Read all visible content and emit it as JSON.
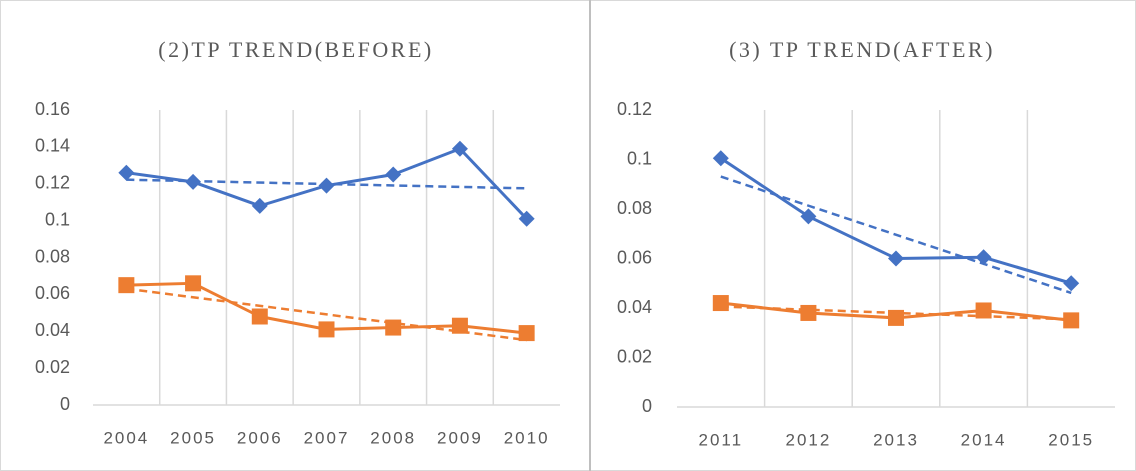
{
  "chart_data": [
    {
      "type": "line",
      "title": "(2)TP TREND(BEFORE)",
      "categories": [
        "2004",
        "2005",
        "2006",
        "2007",
        "2008",
        "2009",
        "2010"
      ],
      "series": [
        {
          "color": "#4472c4",
          "marker": "diamond",
          "values": [
            0.126,
            0.121,
            0.108,
            0.119,
            0.125,
            0.139,
            0.101
          ]
        },
        {
          "color": "#ed7d31",
          "marker": "square",
          "values": [
            0.065,
            0.066,
            0.048,
            0.041,
            0.042,
            0.043,
            0.039
          ]
        }
      ],
      "ylim": [
        0,
        0.16
      ],
      "yticks": [
        0,
        0.02,
        0.04,
        0.06,
        0.08,
        0.1,
        0.12,
        0.14,
        0.16
      ],
      "trendline": "linear",
      "grid": true
    },
    {
      "type": "line",
      "title": "(3) TP TREND(AFTER)",
      "categories": [
        "2011",
        "2012",
        "2013",
        "2014",
        "2015"
      ],
      "series": [
        {
          "color": "#4472c4",
          "marker": "diamond",
          "values": [
            0.1005,
            0.077,
            0.06,
            0.0605,
            0.05
          ]
        },
        {
          "color": "#ed7d31",
          "marker": "square",
          "values": [
            0.042,
            0.038,
            0.036,
            0.039,
            0.035
          ]
        }
      ],
      "ylim": [
        0,
        0.12
      ],
      "yticks": [
        0,
        0.02,
        0.04,
        0.06,
        0.08,
        0.1,
        0.12
      ],
      "trendline": "linear",
      "grid": true
    }
  ]
}
